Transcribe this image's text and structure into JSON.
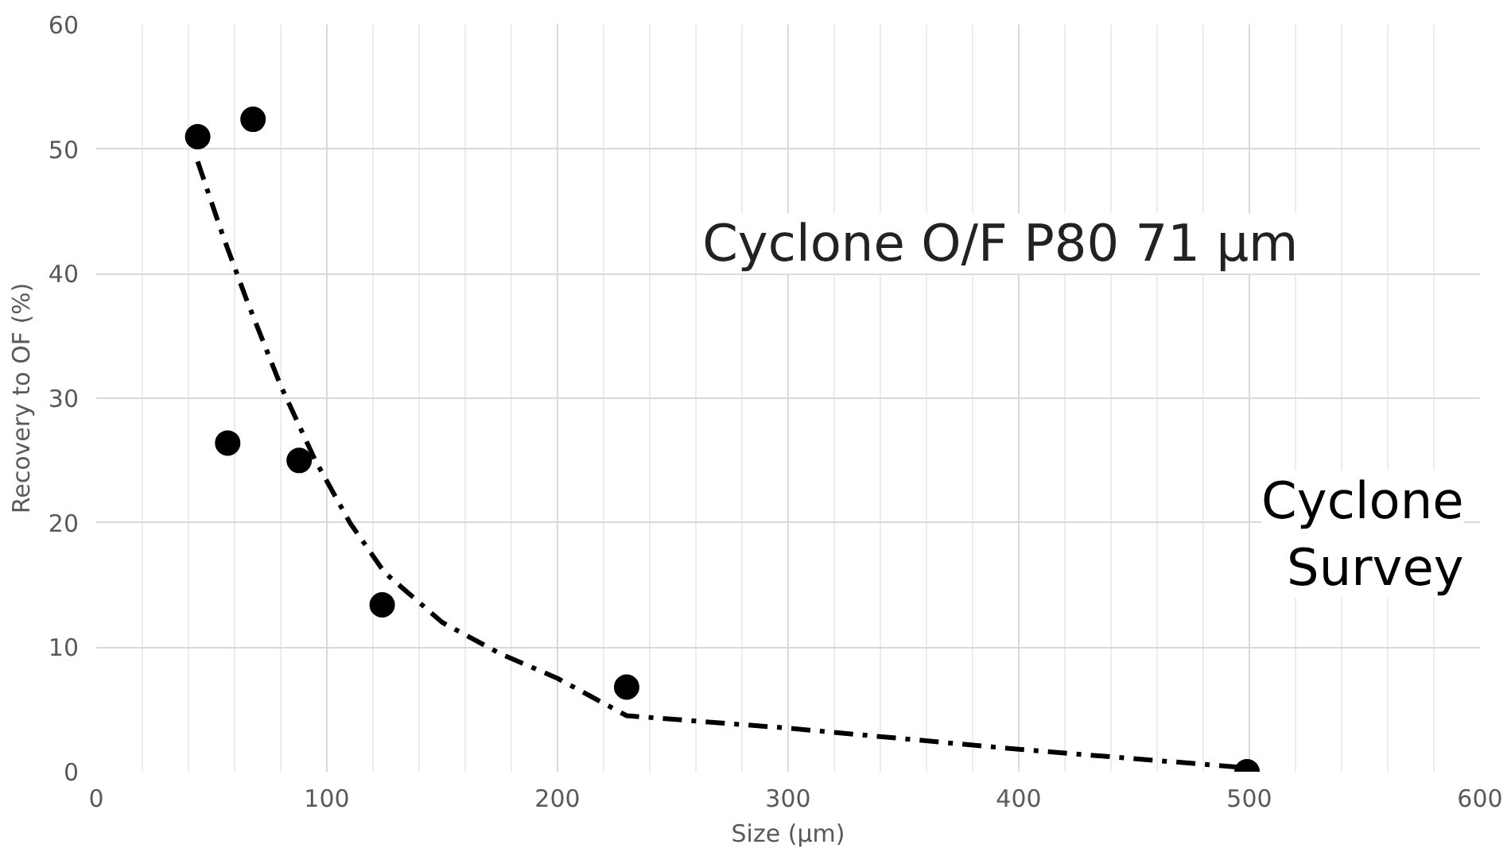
{
  "chart_data": {
    "type": "scatter",
    "xlabel": "Size (µm)",
    "ylabel": "Recovery to OF (%)",
    "xlim": [
      0,
      600
    ],
    "xticks": [
      0,
      100,
      200,
      300,
      400,
      500,
      600
    ],
    "ylim": [
      0,
      60
    ],
    "yticks": [
      0,
      10,
      20,
      30,
      40,
      50,
      60
    ],
    "grid": true,
    "series": [
      {
        "marker": "circle",
        "color": "#000000",
        "x": [
          44,
          68,
          57,
          88,
          124,
          230,
          499
        ],
        "values": [
          51,
          52.4,
          26.4,
          25,
          13.4,
          6.8,
          0
        ]
      },
      {
        "type": "line",
        "line_style": "dashed",
        "color": "#000000",
        "x": [
          44,
          55,
          65,
          80,
          95,
          110,
          125,
          150,
          175,
          200,
          215,
          230,
          300,
          400,
          500
        ],
        "values": [
          49,
          43,
          38,
          31,
          25,
          20,
          16,
          12,
          9.5,
          7.5,
          6,
          4.5,
          3.5,
          1.8,
          0.3
        ]
      }
    ],
    "annotations": [
      "Cyclone O/F P80 71 µm",
      "Cyclone\nSurvey"
    ]
  }
}
